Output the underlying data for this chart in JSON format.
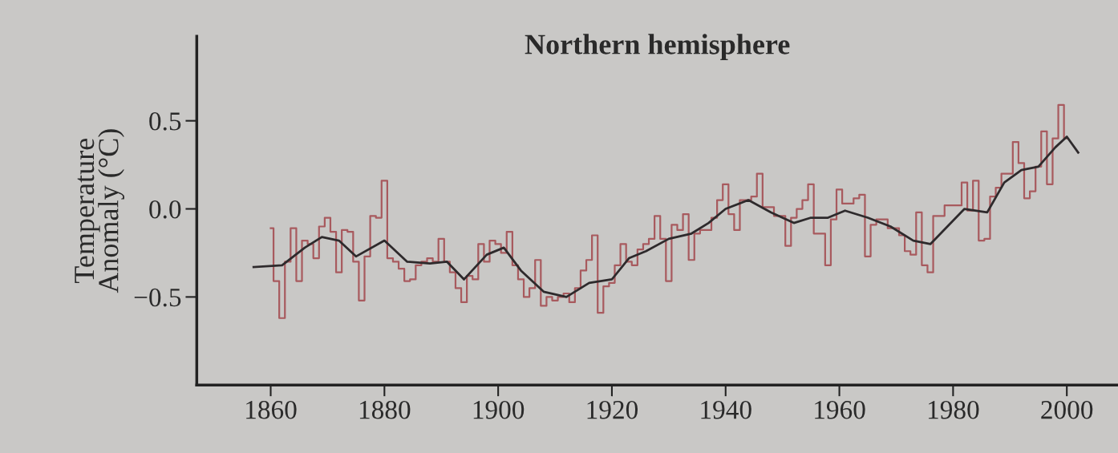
{
  "chart_data": {
    "type": "step",
    "title": "Northern hemisphere",
    "ylabel": "Temperature\nAnomaly (°C)",
    "xlim": [
      1847,
      2009
    ],
    "xticks": [
      1860,
      1880,
      1900,
      1920,
      1940,
      1960,
      1980,
      2000
    ],
    "ylim": [
      -1.0,
      0.98
    ],
    "yticks": [
      {
        "value": 0.5,
        "label": "0.5"
      },
      {
        "value": 0.0,
        "label": "0.0"
      },
      {
        "value": -0.5,
        "label": "−0.5"
      }
    ],
    "grid": false,
    "legend": false,
    "series": [
      {
        "color": "#a85a5e",
        "x": [
          1860,
          1861,
          1862,
          1863,
          1864,
          1865,
          1866,
          1867,
          1868,
          1869,
          1870,
          1871,
          1872,
          1873,
          1874,
          1875,
          1876,
          1877,
          1878,
          1879,
          1880,
          1881,
          1882,
          1883,
          1884,
          1885,
          1886,
          1887,
          1888,
          1889,
          1890,
          1891,
          1892,
          1893,
          1894,
          1895,
          1896,
          1897,
          1898,
          1899,
          1900,
          1901,
          1902,
          1903,
          1904,
          1905,
          1906,
          1907,
          1908,
          1909,
          1910,
          1911,
          1912,
          1913,
          1914,
          1915,
          1916,
          1917,
          1918,
          1919,
          1920,
          1921,
          1922,
          1923,
          1924,
          1925,
          1926,
          1927,
          1928,
          1929,
          1930,
          1931,
          1932,
          1933,
          1934,
          1935,
          1936,
          1937,
          1938,
          1939,
          1940,
          1941,
          1942,
          1943,
          1944,
          1945,
          1946,
          1947,
          1948,
          1949,
          1950,
          1951,
          1952,
          1953,
          1954,
          1955,
          1956,
          1957,
          1958,
          1959,
          1960,
          1961,
          1962,
          1963,
          1964,
          1965,
          1966,
          1967,
          1968,
          1969,
          1970,
          1971,
          1972,
          1973,
          1974,
          1975,
          1976,
          1977,
          1978,
          1979,
          1980,
          1981,
          1982,
          1983,
          1984,
          1985,
          1986,
          1987,
          1988,
          1989,
          1990,
          1991,
          1992,
          1993,
          1994,
          1995,
          1996,
          1997,
          1998,
          1999,
          2000
        ],
        "values": [
          -0.11,
          -0.41,
          -0.62,
          -0.3,
          -0.11,
          -0.41,
          -0.18,
          -0.2,
          -0.28,
          -0.1,
          -0.05,
          -0.13,
          -0.36,
          -0.12,
          -0.13,
          -0.3,
          -0.52,
          -0.27,
          -0.04,
          -0.05,
          0.16,
          -0.28,
          -0.3,
          -0.34,
          -0.41,
          -0.4,
          -0.32,
          -0.3,
          -0.28,
          -0.3,
          -0.17,
          -0.3,
          -0.36,
          -0.45,
          -0.53,
          -0.38,
          -0.4,
          -0.2,
          -0.3,
          -0.18,
          -0.2,
          -0.25,
          -0.13,
          -0.32,
          -0.4,
          -0.5,
          -0.45,
          -0.29,
          -0.55,
          -0.5,
          -0.52,
          -0.5,
          -0.48,
          -0.53,
          -0.45,
          -0.35,
          -0.29,
          -0.15,
          -0.59,
          -0.44,
          -0.42,
          -0.32,
          -0.2,
          -0.3,
          -0.32,
          -0.23,
          -0.2,
          -0.17,
          -0.04,
          -0.17,
          -0.41,
          -0.09,
          -0.12,
          -0.03,
          -0.29,
          -0.14,
          -0.12,
          -0.12,
          -0.05,
          0.05,
          0.14,
          -0.03,
          -0.12,
          0.05,
          0.05,
          0.07,
          0.2,
          0.01,
          0.01,
          -0.04,
          -0.04,
          -0.21,
          -0.05,
          0.0,
          0.05,
          0.14,
          -0.14,
          -0.14,
          -0.32,
          -0.06,
          0.11,
          0.03,
          0.03,
          0.06,
          0.08,
          -0.27,
          -0.09,
          -0.06,
          -0.06,
          -0.11,
          -0.11,
          -0.15,
          -0.24,
          -0.26,
          -0.02,
          -0.32,
          -0.36,
          -0.04,
          -0.04,
          0.02,
          0.02,
          0.02,
          0.15,
          -0.01,
          0.16,
          -0.18,
          -0.17,
          0.07,
          0.12,
          0.2,
          0.2,
          0.38,
          0.26,
          0.06,
          0.1,
          0.24,
          0.44,
          0.14,
          0.4,
          0.59,
          0.4
        ]
      },
      {
        "type": "line",
        "color": "#2e2a2c",
        "x": [
          1857,
          1862,
          1866,
          1869,
          1872,
          1875,
          1880,
          1884,
          1888,
          1891,
          1894,
          1898,
          1901,
          1904,
          1908,
          1912,
          1916,
          1920,
          1923,
          1926,
          1930,
          1934,
          1937,
          1940,
          1944,
          1948,
          1952,
          1955,
          1958,
          1961,
          1965,
          1969,
          1973,
          1976,
          1979,
          1982,
          1986,
          1989,
          1992,
          1995,
          1998,
          2000,
          2002
        ],
        "values": [
          -0.33,
          -0.32,
          -0.22,
          -0.16,
          -0.18,
          -0.27,
          -0.18,
          -0.3,
          -0.31,
          -0.3,
          -0.4,
          -0.26,
          -0.22,
          -0.35,
          -0.47,
          -0.5,
          -0.42,
          -0.4,
          -0.28,
          -0.24,
          -0.17,
          -0.14,
          -0.08,
          0.0,
          0.05,
          -0.02,
          -0.08,
          -0.05,
          -0.05,
          -0.01,
          -0.05,
          -0.1,
          -0.18,
          -0.2,
          -0.1,
          0.0,
          -0.02,
          0.15,
          0.22,
          0.24,
          0.35,
          0.41,
          0.32
        ]
      }
    ]
  }
}
